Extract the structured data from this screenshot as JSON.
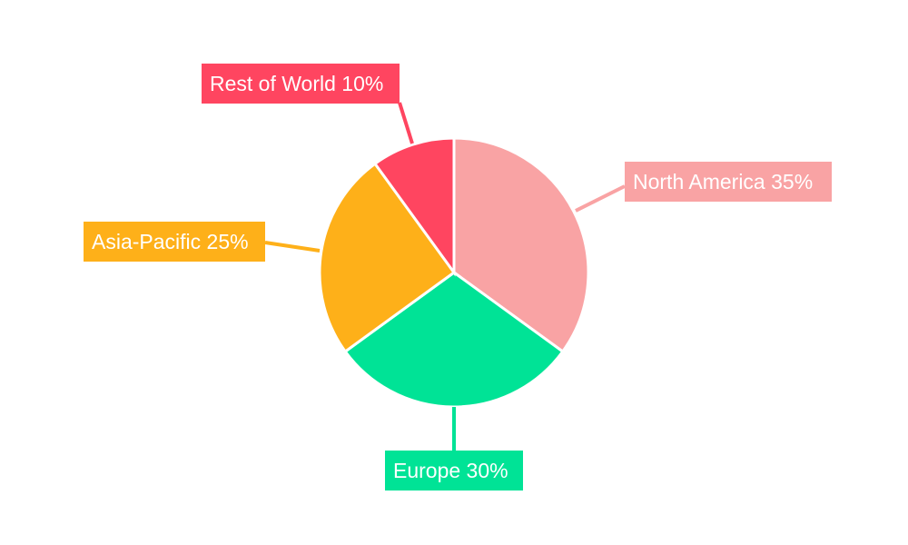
{
  "chart_data": {
    "type": "pie",
    "start_angle": "12 o'clock, clockwise",
    "slices": [
      {
        "name": "North America",
        "value": 35,
        "label": "North America 35%",
        "color": "#F9A3A4"
      },
      {
        "name": "Europe",
        "value": 30,
        "label": "Europe 30%",
        "color": "#00E396"
      },
      {
        "name": "Asia-Pacific",
        "value": 25,
        "label": "Asia-Pacific 25%",
        "color": "#FEB019"
      },
      {
        "name": "Rest of World",
        "value": 10,
        "label": "Rest of World 10%",
        "color": "#FF4560"
      }
    ]
  }
}
